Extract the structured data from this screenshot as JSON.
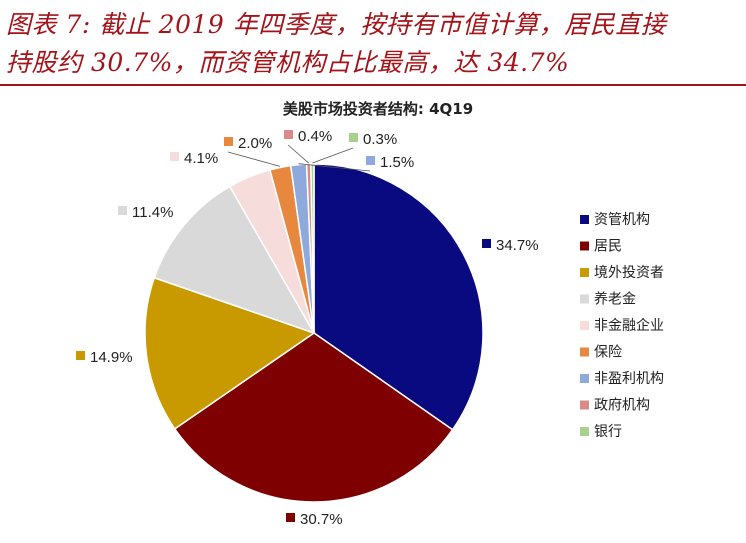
{
  "figure": {
    "title_line1": "图表 7:  截止 2019 年四季度，按持有市值计算，居民直接",
    "title_line2": "持股约 30.7%，而资管机构占比最高，达 34.7%"
  },
  "colors": {
    "title": "#a3141a",
    "rule": "#a3141a"
  },
  "chart_data": {
    "type": "pie",
    "title": "美股市场投资者结构:  4Q19",
    "unit": "%",
    "legend_position": "right",
    "slices": [
      {
        "name": "资管机构",
        "value": 34.7,
        "label": "34.7%",
        "color": "#0a0a80"
      },
      {
        "name": "居民",
        "value": 30.7,
        "label": "30.7%",
        "color": "#7f0000"
      },
      {
        "name": "境外投资者",
        "value": 14.9,
        "label": "14.9%",
        "color": "#c89a00"
      },
      {
        "name": "养老金",
        "value": 11.4,
        "label": "11.4%",
        "color": "#d9d9d9"
      },
      {
        "name": "非金融企业",
        "value": 4.1,
        "label": "4.1%",
        "color": "#f7dcdc"
      },
      {
        "name": "保险",
        "value": 2.0,
        "label": "2.0%",
        "color": "#e8873e"
      },
      {
        "name": "非盈利机构",
        "value": 1.5,
        "label": "1.5%",
        "color": "#8ea9db"
      },
      {
        "name": "政府机构",
        "value": 0.4,
        "label": "0.4%",
        "color": "#d98b8b"
      },
      {
        "name": "银行",
        "value": 0.3,
        "label": "0.3%",
        "color": "#a9d18e"
      }
    ]
  }
}
